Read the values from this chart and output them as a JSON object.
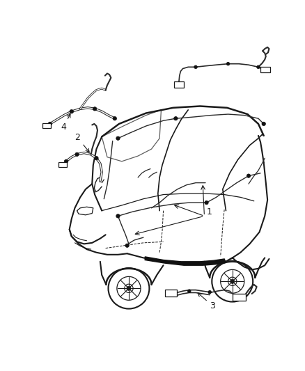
{
  "bg": "#ffffff",
  "lc": "#1a1a1a",
  "wc": "#2a2a2a",
  "figure_width": 4.38,
  "figure_height": 5.33,
  "dpi": 100
}
